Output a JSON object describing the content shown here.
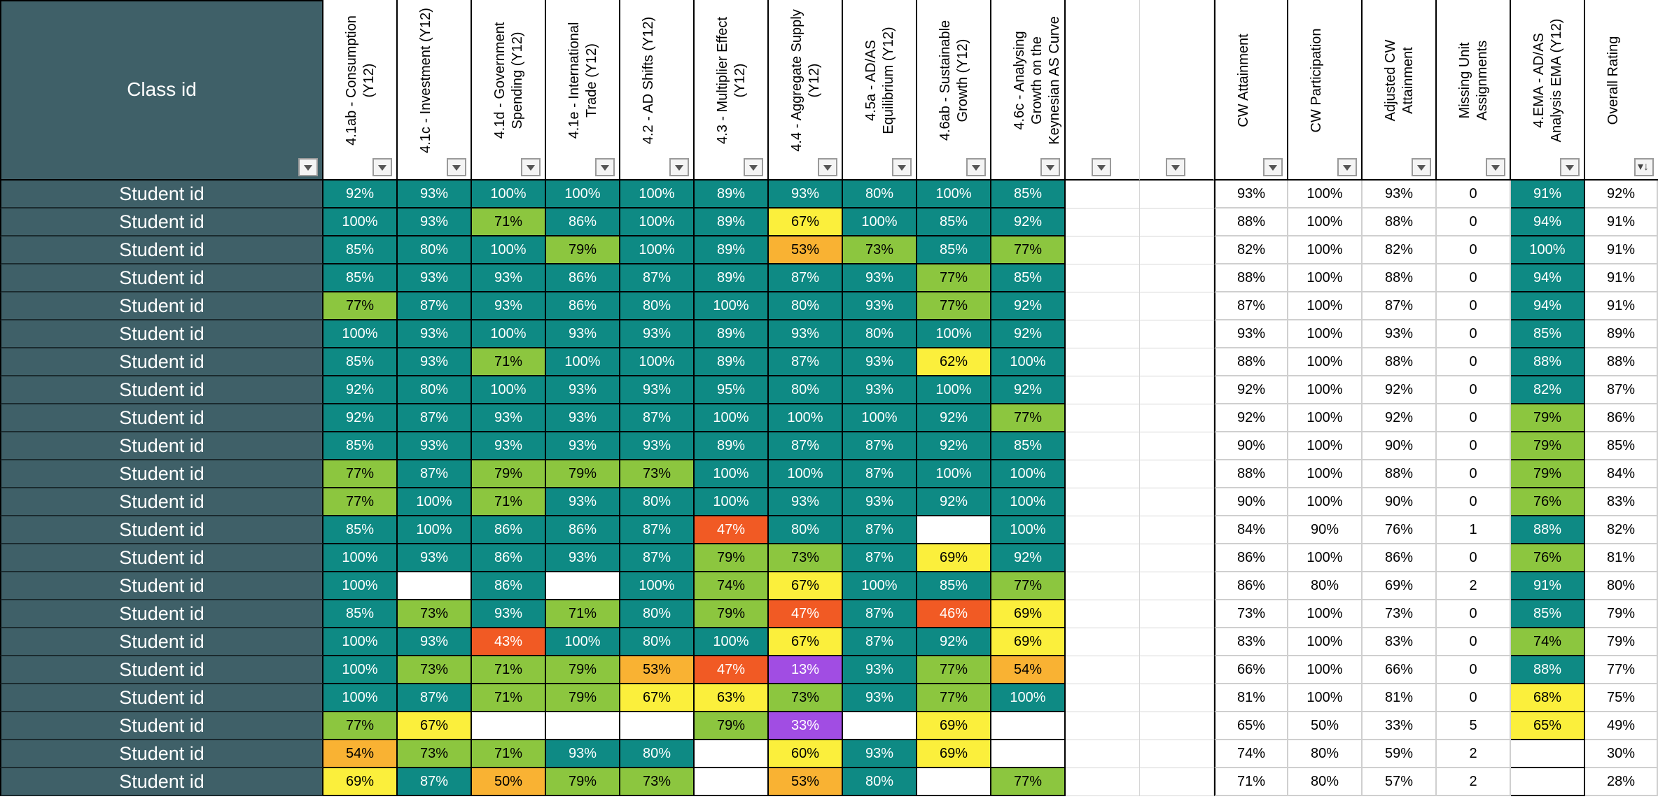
{
  "header": {
    "class_id": "Class id",
    "columns": [
      "4.1ab - Consumption (Y12)",
      "4.1c - Investment (Y12)",
      "4.1d - Government Spending (Y12)",
      "4.1e - International Trade (Y12)",
      "4.2 - AD Shifts (Y12)",
      "4.3 - Multiplier Effect (Y12)",
      "4.4 - Aggregate Supply (Y12)",
      "4.5a - AD/AS Equilibrium (Y12)",
      "4.6ab - Sustainable Growth (Y12)",
      "4.6c - Analysing Growth on the Keynesian AS Curve (Y12)",
      "",
      "",
      "CW Attainment",
      "CW Participation",
      "Adjusted CW Attainment",
      "Missing Unit Assignments",
      "4.EMA - AD/AS Analysis EMA (Y12)",
      "Overall Rating"
    ]
  },
  "colors": {
    "teal": "#0e8a84",
    "lgreen": "#8cc63f",
    "yellow": "#fbef3c",
    "orange": "#f9b233",
    "red": "#f15a24",
    "purple": "#a14de3",
    "header_bg": "#3f6068"
  },
  "rows": [
    {
      "label": "Student id",
      "units": [
        [
          "92%",
          "teal"
        ],
        [
          "93%",
          "teal"
        ],
        [
          "100%",
          "teal"
        ],
        [
          "100%",
          "teal"
        ],
        [
          "100%",
          "teal"
        ],
        [
          "89%",
          "teal"
        ],
        [
          "93%",
          "teal"
        ],
        [
          "80%",
          "teal"
        ],
        [
          "100%",
          "teal"
        ],
        [
          "85%",
          "teal"
        ]
      ],
      "cw": "93%",
      "part": "100%",
      "adj": "93%",
      "missing": "0",
      "ema": [
        "91%",
        "teal"
      ],
      "overall": "92%"
    },
    {
      "label": "Student id",
      "units": [
        [
          "100%",
          "teal"
        ],
        [
          "93%",
          "teal"
        ],
        [
          "71%",
          "lgreen"
        ],
        [
          "86%",
          "teal"
        ],
        [
          "100%",
          "teal"
        ],
        [
          "89%",
          "teal"
        ],
        [
          "67%",
          "yellow"
        ],
        [
          "100%",
          "teal"
        ],
        [
          "85%",
          "teal"
        ],
        [
          "92%",
          "teal"
        ]
      ],
      "cw": "88%",
      "part": "100%",
      "adj": "88%",
      "missing": "0",
      "ema": [
        "94%",
        "teal"
      ],
      "overall": "91%"
    },
    {
      "label": "Student id",
      "units": [
        [
          "85%",
          "teal"
        ],
        [
          "80%",
          "teal"
        ],
        [
          "100%",
          "teal"
        ],
        [
          "79%",
          "lgreen"
        ],
        [
          "100%",
          "teal"
        ],
        [
          "89%",
          "teal"
        ],
        [
          "53%",
          "orange"
        ],
        [
          "73%",
          "lgreen"
        ],
        [
          "85%",
          "teal"
        ],
        [
          "77%",
          "lgreen"
        ]
      ],
      "cw": "82%",
      "part": "100%",
      "adj": "82%",
      "missing": "0",
      "ema": [
        "100%",
        "teal"
      ],
      "overall": "91%"
    },
    {
      "label": "Student id",
      "units": [
        [
          "85%",
          "teal"
        ],
        [
          "93%",
          "teal"
        ],
        [
          "93%",
          "teal"
        ],
        [
          "86%",
          "teal"
        ],
        [
          "87%",
          "teal"
        ],
        [
          "89%",
          "teal"
        ],
        [
          "87%",
          "teal"
        ],
        [
          "93%",
          "teal"
        ],
        [
          "77%",
          "lgreen"
        ],
        [
          "85%",
          "teal"
        ]
      ],
      "cw": "88%",
      "part": "100%",
      "adj": "88%",
      "missing": "0",
      "ema": [
        "94%",
        "teal"
      ],
      "overall": "91%"
    },
    {
      "label": "Student id",
      "units": [
        [
          "77%",
          "lgreen"
        ],
        [
          "87%",
          "teal"
        ],
        [
          "93%",
          "teal"
        ],
        [
          "86%",
          "teal"
        ],
        [
          "80%",
          "teal"
        ],
        [
          "100%",
          "teal"
        ],
        [
          "80%",
          "teal"
        ],
        [
          "93%",
          "teal"
        ],
        [
          "77%",
          "lgreen"
        ],
        [
          "92%",
          "teal"
        ]
      ],
      "cw": "87%",
      "part": "100%",
      "adj": "87%",
      "missing": "0",
      "ema": [
        "94%",
        "teal"
      ],
      "overall": "91%"
    },
    {
      "label": "Student id",
      "units": [
        [
          "100%",
          "teal"
        ],
        [
          "93%",
          "teal"
        ],
        [
          "100%",
          "teal"
        ],
        [
          "93%",
          "teal"
        ],
        [
          "93%",
          "teal"
        ],
        [
          "89%",
          "teal"
        ],
        [
          "93%",
          "teal"
        ],
        [
          "80%",
          "teal"
        ],
        [
          "100%",
          "teal"
        ],
        [
          "92%",
          "teal"
        ]
      ],
      "cw": "93%",
      "part": "100%",
      "adj": "93%",
      "missing": "0",
      "ema": [
        "85%",
        "teal"
      ],
      "overall": "89%"
    },
    {
      "label": "Student id",
      "units": [
        [
          "85%",
          "teal"
        ],
        [
          "93%",
          "teal"
        ],
        [
          "71%",
          "lgreen"
        ],
        [
          "100%",
          "teal"
        ],
        [
          "100%",
          "teal"
        ],
        [
          "89%",
          "teal"
        ],
        [
          "87%",
          "teal"
        ],
        [
          "93%",
          "teal"
        ],
        [
          "62%",
          "yellow"
        ],
        [
          "100%",
          "teal"
        ]
      ],
      "cw": "88%",
      "part": "100%",
      "adj": "88%",
      "missing": "0",
      "ema": [
        "88%",
        "teal"
      ],
      "overall": "88%"
    },
    {
      "label": "Student id",
      "units": [
        [
          "92%",
          "teal"
        ],
        [
          "80%",
          "teal"
        ],
        [
          "100%",
          "teal"
        ],
        [
          "93%",
          "teal"
        ],
        [
          "93%",
          "teal"
        ],
        [
          "95%",
          "teal"
        ],
        [
          "80%",
          "teal"
        ],
        [
          "93%",
          "teal"
        ],
        [
          "100%",
          "teal"
        ],
        [
          "92%",
          "teal"
        ]
      ],
      "cw": "92%",
      "part": "100%",
      "adj": "92%",
      "missing": "0",
      "ema": [
        "82%",
        "teal"
      ],
      "overall": "87%"
    },
    {
      "label": "Student id",
      "units": [
        [
          "92%",
          "teal"
        ],
        [
          "87%",
          "teal"
        ],
        [
          "93%",
          "teal"
        ],
        [
          "93%",
          "teal"
        ],
        [
          "87%",
          "teal"
        ],
        [
          "100%",
          "teal"
        ],
        [
          "100%",
          "teal"
        ],
        [
          "100%",
          "teal"
        ],
        [
          "92%",
          "teal"
        ],
        [
          "77%",
          "lgreen"
        ]
      ],
      "cw": "92%",
      "part": "100%",
      "adj": "92%",
      "missing": "0",
      "ema": [
        "79%",
        "lgreen"
      ],
      "overall": "86%"
    },
    {
      "label": "Student id",
      "units": [
        [
          "85%",
          "teal"
        ],
        [
          "93%",
          "teal"
        ],
        [
          "93%",
          "teal"
        ],
        [
          "93%",
          "teal"
        ],
        [
          "93%",
          "teal"
        ],
        [
          "89%",
          "teal"
        ],
        [
          "87%",
          "teal"
        ],
        [
          "87%",
          "teal"
        ],
        [
          "92%",
          "teal"
        ],
        [
          "85%",
          "teal"
        ]
      ],
      "cw": "90%",
      "part": "100%",
      "adj": "90%",
      "missing": "0",
      "ema": [
        "79%",
        "lgreen"
      ],
      "overall": "85%"
    },
    {
      "label": "Student id",
      "units": [
        [
          "77%",
          "lgreen"
        ],
        [
          "87%",
          "teal"
        ],
        [
          "79%",
          "lgreen"
        ],
        [
          "79%",
          "lgreen"
        ],
        [
          "73%",
          "lgreen"
        ],
        [
          "100%",
          "teal"
        ],
        [
          "100%",
          "teal"
        ],
        [
          "87%",
          "teal"
        ],
        [
          "100%",
          "teal"
        ],
        [
          "100%",
          "teal"
        ]
      ],
      "cw": "88%",
      "part": "100%",
      "adj": "88%",
      "missing": "0",
      "ema": [
        "79%",
        "lgreen"
      ],
      "overall": "84%"
    },
    {
      "label": "Student id",
      "units": [
        [
          "77%",
          "lgreen"
        ],
        [
          "100%",
          "teal"
        ],
        [
          "71%",
          "lgreen"
        ],
        [
          "93%",
          "teal"
        ],
        [
          "80%",
          "teal"
        ],
        [
          "100%",
          "teal"
        ],
        [
          "93%",
          "teal"
        ],
        [
          "93%",
          "teal"
        ],
        [
          "92%",
          "teal"
        ],
        [
          "100%",
          "teal"
        ]
      ],
      "cw": "90%",
      "part": "100%",
      "adj": "90%",
      "missing": "0",
      "ema": [
        "76%",
        "lgreen"
      ],
      "overall": "83%"
    },
    {
      "label": "Student id",
      "units": [
        [
          "85%",
          "teal"
        ],
        [
          "100%",
          "teal"
        ],
        [
          "86%",
          "teal"
        ],
        [
          "86%",
          "teal"
        ],
        [
          "87%",
          "teal"
        ],
        [
          "47%",
          "red"
        ],
        [
          "80%",
          "teal"
        ],
        [
          "87%",
          "teal"
        ],
        [
          "",
          "empty"
        ],
        [
          "100%",
          "teal"
        ]
      ],
      "cw": "84%",
      "part": "90%",
      "adj": "76%",
      "missing": "1",
      "ema": [
        "88%",
        "teal"
      ],
      "overall": "82%"
    },
    {
      "label": "Student id",
      "units": [
        [
          "100%",
          "teal"
        ],
        [
          "93%",
          "teal"
        ],
        [
          "86%",
          "teal"
        ],
        [
          "93%",
          "teal"
        ],
        [
          "87%",
          "teal"
        ],
        [
          "79%",
          "lgreen"
        ],
        [
          "73%",
          "lgreen"
        ],
        [
          "87%",
          "teal"
        ],
        [
          "69%",
          "yellow"
        ],
        [
          "92%",
          "teal"
        ]
      ],
      "cw": "86%",
      "part": "100%",
      "adj": "86%",
      "missing": "0",
      "ema": [
        "76%",
        "lgreen"
      ],
      "overall": "81%"
    },
    {
      "label": "Student id",
      "units": [
        [
          "100%",
          "teal"
        ],
        [
          "",
          "empty"
        ],
        [
          "86%",
          "teal"
        ],
        [
          "",
          "empty"
        ],
        [
          "100%",
          "teal"
        ],
        [
          "74%",
          "lgreen"
        ],
        [
          "67%",
          "yellow"
        ],
        [
          "100%",
          "teal"
        ],
        [
          "85%",
          "teal"
        ],
        [
          "77%",
          "lgreen"
        ]
      ],
      "cw": "86%",
      "part": "80%",
      "adj": "69%",
      "missing": "2",
      "ema": [
        "91%",
        "teal"
      ],
      "overall": "80%"
    },
    {
      "label": "Student id",
      "units": [
        [
          "85%",
          "teal"
        ],
        [
          "73%",
          "lgreen"
        ],
        [
          "93%",
          "teal"
        ],
        [
          "71%",
          "lgreen"
        ],
        [
          "80%",
          "teal"
        ],
        [
          "79%",
          "lgreen"
        ],
        [
          "47%",
          "red"
        ],
        [
          "87%",
          "teal"
        ],
        [
          "46%",
          "red"
        ],
        [
          "69%",
          "yellow"
        ]
      ],
      "cw": "73%",
      "part": "100%",
      "adj": "73%",
      "missing": "0",
      "ema": [
        "85%",
        "teal"
      ],
      "overall": "79%"
    },
    {
      "label": "Student id",
      "units": [
        [
          "100%",
          "teal"
        ],
        [
          "93%",
          "teal"
        ],
        [
          "43%",
          "red"
        ],
        [
          "100%",
          "teal"
        ],
        [
          "80%",
          "teal"
        ],
        [
          "100%",
          "teal"
        ],
        [
          "67%",
          "yellow"
        ],
        [
          "87%",
          "teal"
        ],
        [
          "92%",
          "teal"
        ],
        [
          "69%",
          "yellow"
        ]
      ],
      "cw": "83%",
      "part": "100%",
      "adj": "83%",
      "missing": "0",
      "ema": [
        "74%",
        "lgreen"
      ],
      "overall": "79%"
    },
    {
      "label": "Student id",
      "units": [
        [
          "100%",
          "teal"
        ],
        [
          "73%",
          "lgreen"
        ],
        [
          "71%",
          "lgreen"
        ],
        [
          "79%",
          "lgreen"
        ],
        [
          "53%",
          "orange"
        ],
        [
          "47%",
          "red"
        ],
        [
          "13%",
          "purple"
        ],
        [
          "93%",
          "teal"
        ],
        [
          "77%",
          "lgreen"
        ],
        [
          "54%",
          "orange"
        ]
      ],
      "cw": "66%",
      "part": "100%",
      "adj": "66%",
      "missing": "0",
      "ema": [
        "88%",
        "teal"
      ],
      "overall": "77%"
    },
    {
      "label": "Student id",
      "units": [
        [
          "100%",
          "teal"
        ],
        [
          "87%",
          "teal"
        ],
        [
          "71%",
          "lgreen"
        ],
        [
          "79%",
          "lgreen"
        ],
        [
          "67%",
          "yellow"
        ],
        [
          "63%",
          "yellow"
        ],
        [
          "73%",
          "lgreen"
        ],
        [
          "93%",
          "teal"
        ],
        [
          "77%",
          "lgreen"
        ],
        [
          "100%",
          "teal"
        ]
      ],
      "cw": "81%",
      "part": "100%",
      "adj": "81%",
      "missing": "0",
      "ema": [
        "68%",
        "yellow"
      ],
      "overall": "75%"
    },
    {
      "label": "Student id",
      "units": [
        [
          "77%",
          "lgreen"
        ],
        [
          "67%",
          "yellow"
        ],
        [
          "",
          "empty"
        ],
        [
          "",
          "empty"
        ],
        [
          "",
          "empty"
        ],
        [
          "79%",
          "lgreen"
        ],
        [
          "33%",
          "purple"
        ],
        [
          "",
          "empty"
        ],
        [
          "69%",
          "yellow"
        ],
        [
          "",
          "empty"
        ]
      ],
      "cw": "65%",
      "part": "50%",
      "adj": "33%",
      "missing": "5",
      "ema": [
        "65%",
        "yellow"
      ],
      "overall": "49%"
    },
    {
      "label": "Student id",
      "units": [
        [
          "54%",
          "orange"
        ],
        [
          "73%",
          "lgreen"
        ],
        [
          "71%",
          "lgreen"
        ],
        [
          "93%",
          "teal"
        ],
        [
          "80%",
          "teal"
        ],
        [
          "",
          "empty"
        ],
        [
          "60%",
          "yellow"
        ],
        [
          "93%",
          "teal"
        ],
        [
          "69%",
          "yellow"
        ],
        [
          "",
          "empty"
        ]
      ],
      "cw": "74%",
      "part": "80%",
      "adj": "59%",
      "missing": "2",
      "ema": [
        "",
        "empty"
      ],
      "overall": "30%"
    },
    {
      "label": "Student id",
      "units": [
        [
          "69%",
          "yellow"
        ],
        [
          "87%",
          "teal"
        ],
        [
          "50%",
          "orange"
        ],
        [
          "79%",
          "lgreen"
        ],
        [
          "73%",
          "lgreen"
        ],
        [
          "",
          "empty"
        ],
        [
          "53%",
          "orange"
        ],
        [
          "80%",
          "teal"
        ],
        [
          "",
          "empty"
        ],
        [
          "77%",
          "lgreen"
        ]
      ],
      "cw": "71%",
      "part": "80%",
      "adj": "57%",
      "missing": "2",
      "ema": [
        "",
        "empty"
      ],
      "overall": "28%"
    }
  ]
}
